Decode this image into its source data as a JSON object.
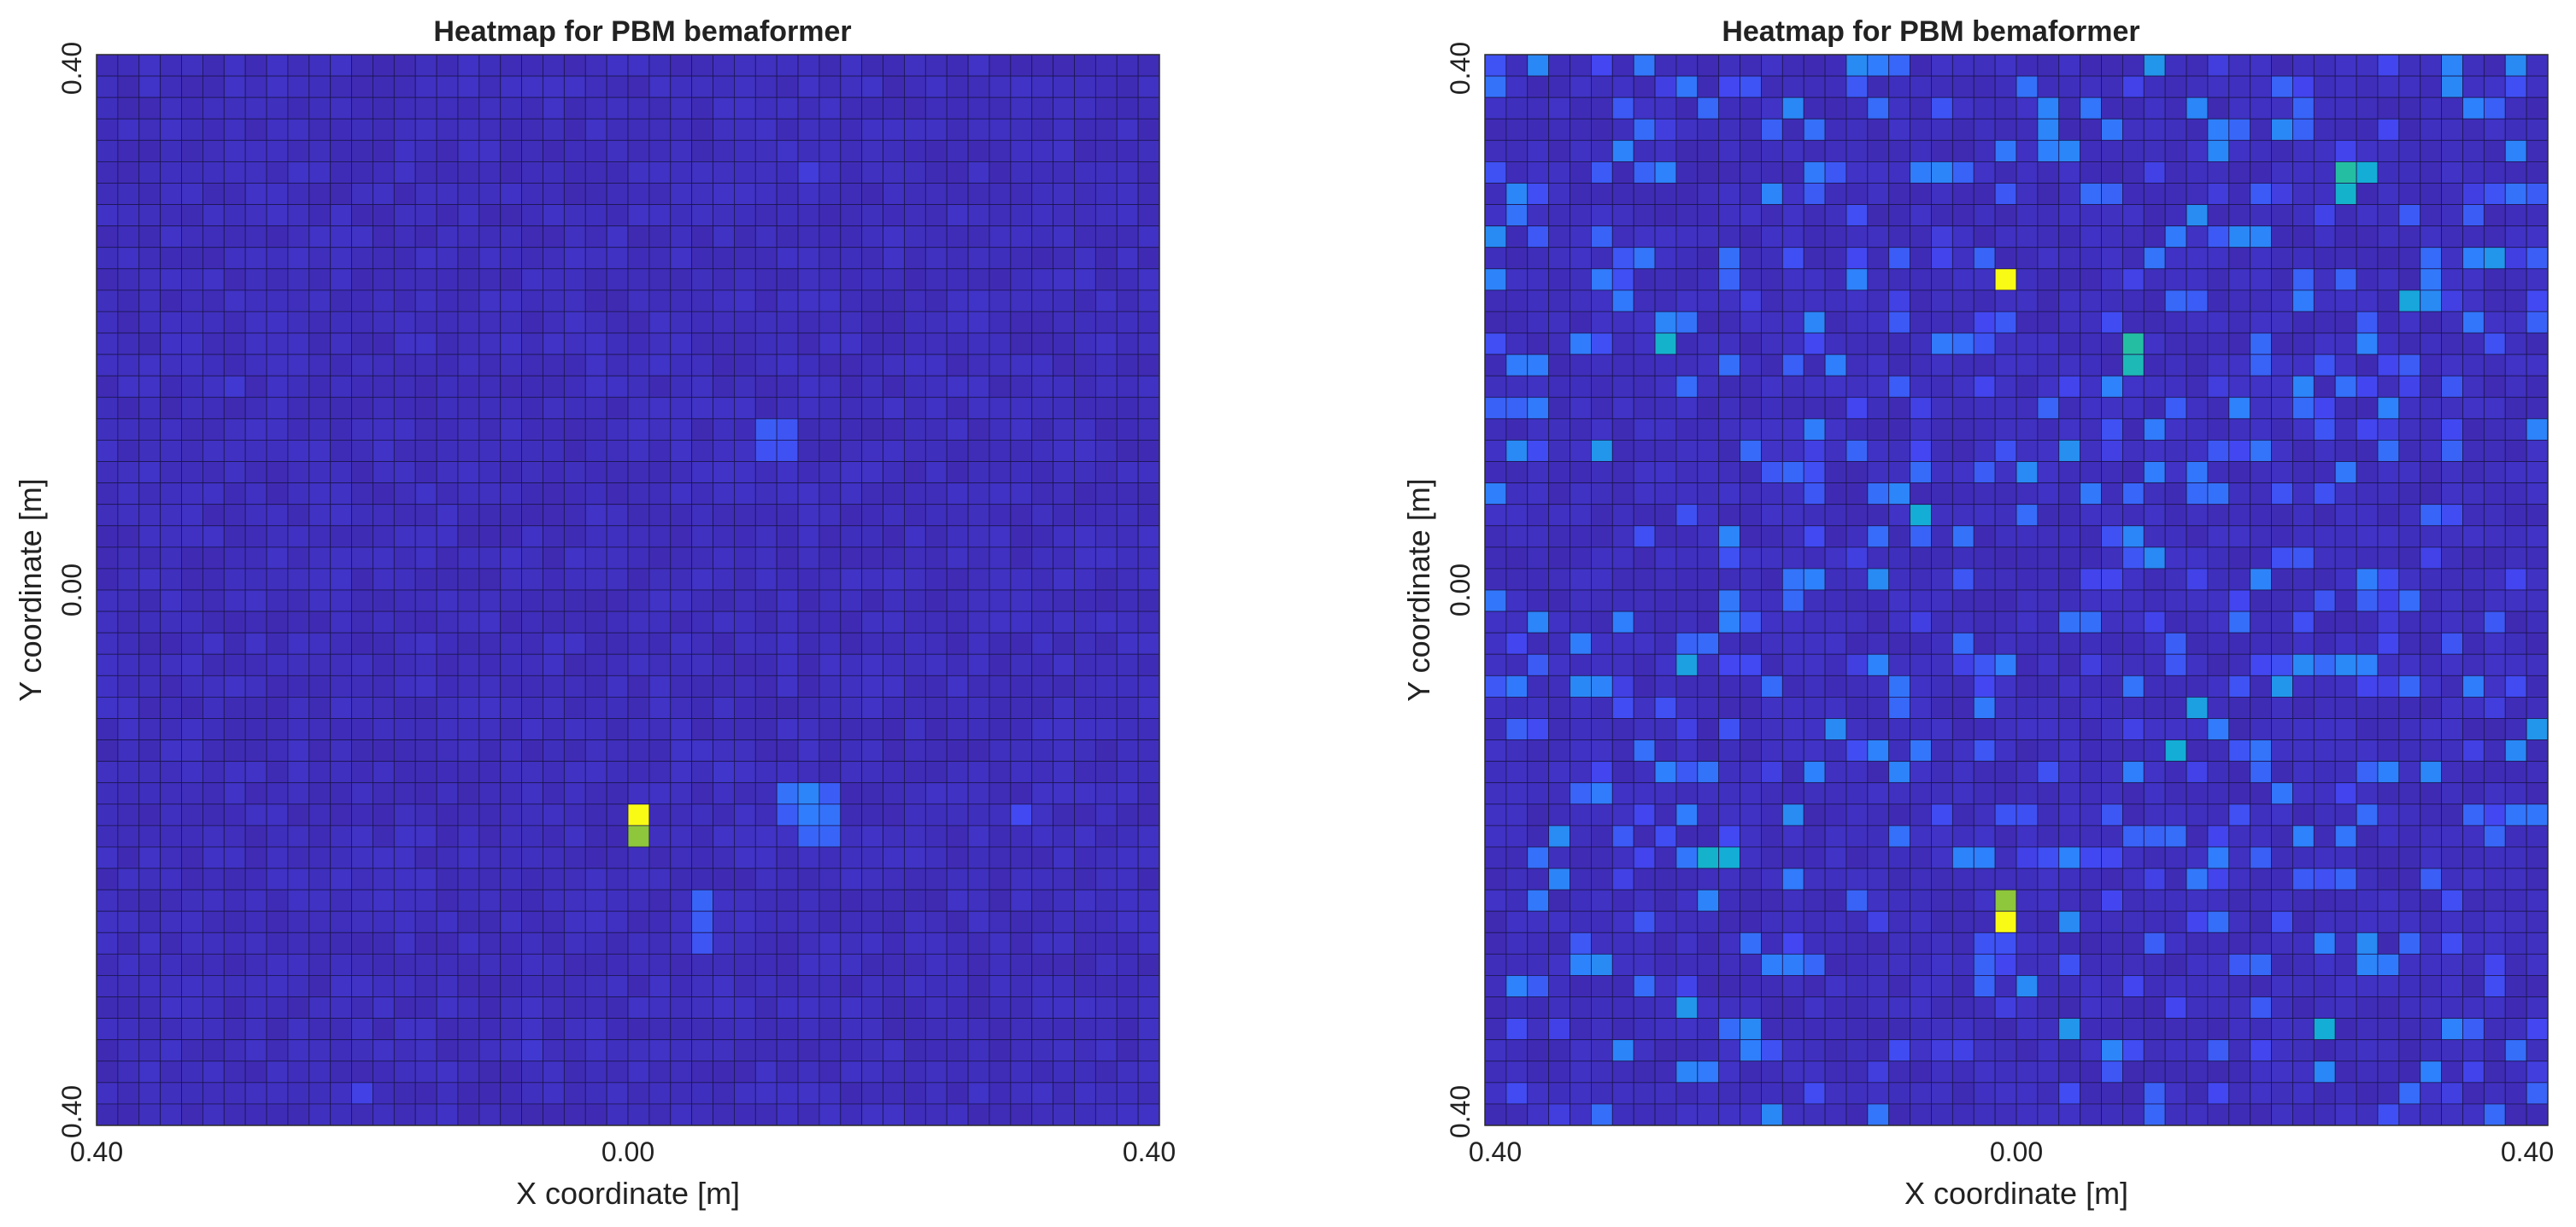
{
  "chart_data": [
    {
      "type": "heatmap",
      "title": "Heatmap for PBM bemaformer",
      "xlabel": "X coordinate [m]",
      "ylabel": "Y coordinate [m]",
      "xticks": [
        "0.40",
        "0.00",
        "0.40"
      ],
      "yticks": [
        "0.40",
        "0.00",
        "0.40"
      ],
      "grid": {
        "cols": 50,
        "rows": 50
      },
      "x_range": [
        -0.4,
        0.4
      ],
      "y_range": [
        -0.4,
        0.4
      ],
      "colormap": [
        "#3e26a8",
        "#4346f1",
        "#2f80fd",
        "#12b0d4",
        "#27c29a",
        "#8bc73d",
        "#dfb92e",
        "#f9fb15"
      ],
      "background_value": 0.02,
      "cells": [
        {
          "c": 25,
          "r": 35,
          "v": 1.0
        },
        {
          "c": 25,
          "r": 36,
          "v": 0.72
        },
        {
          "c": 32,
          "r": 34,
          "v": 0.25
        },
        {
          "c": 33,
          "r": 34,
          "v": 0.3
        },
        {
          "c": 33,
          "r": 35,
          "v": 0.28
        },
        {
          "c": 34,
          "r": 35,
          "v": 0.25
        },
        {
          "c": 33,
          "r": 36,
          "v": 0.22
        },
        {
          "c": 34,
          "r": 36,
          "v": 0.22
        },
        {
          "c": 32,
          "r": 35,
          "v": 0.2
        },
        {
          "c": 34,
          "r": 34,
          "v": 0.2
        },
        {
          "c": 28,
          "r": 39,
          "v": 0.22
        },
        {
          "c": 28,
          "r": 40,
          "v": 0.2
        },
        {
          "c": 28,
          "r": 41,
          "v": 0.18
        },
        {
          "c": 31,
          "r": 17,
          "v": 0.2
        },
        {
          "c": 32,
          "r": 17,
          "v": 0.18
        },
        {
          "c": 31,
          "r": 18,
          "v": 0.17
        },
        {
          "c": 32,
          "r": 18,
          "v": 0.17
        },
        {
          "c": 43,
          "r": 35,
          "v": 0.15
        },
        {
          "c": 33,
          "r": 5,
          "v": 0.1
        },
        {
          "c": 12,
          "r": 48,
          "v": 0.12
        },
        {
          "c": 6,
          "r": 15,
          "v": 0.08
        },
        {
          "c": 20,
          "r": 46,
          "v": 0.08
        },
        {
          "c": 15,
          "r": 20,
          "v": 0.06
        },
        {
          "c": 29,
          "r": 33,
          "v": 0.07
        }
      ]
    },
    {
      "type": "heatmap",
      "title": "Heatmap for PBM bemaformer",
      "xlabel": "X coordinate [m]",
      "ylabel": "Y coordinate [m]",
      "xticks": [
        "0.40",
        "0.00",
        "0.40"
      ],
      "yticks": [
        "0.40",
        "0.00",
        "0.40"
      ],
      "grid": {
        "cols": 50,
        "rows": 50
      },
      "x_range": [
        -0.4,
        0.4
      ],
      "y_range": [
        -0.4,
        0.4
      ],
      "colormap": [
        "#3e26a8",
        "#4346f1",
        "#2f80fd",
        "#12b0d4",
        "#27c29a",
        "#8bc73d",
        "#dfb92e",
        "#f9fb15"
      ],
      "background_value": 0.02,
      "random_fill": {
        "seed": 7,
        "count": 520,
        "min": 0.1,
        "max": 0.32
      },
      "cells": [
        {
          "c": 24,
          "r": 10,
          "v": 1.0
        },
        {
          "c": 24,
          "r": 39,
          "v": 0.72
        },
        {
          "c": 24,
          "r": 40,
          "v": 1.0
        },
        {
          "c": 30,
          "r": 13,
          "v": 0.55
        },
        {
          "c": 30,
          "r": 14,
          "v": 0.5
        },
        {
          "c": 40,
          "r": 5,
          "v": 0.55
        },
        {
          "c": 40,
          "r": 6,
          "v": 0.45
        },
        {
          "c": 41,
          "r": 5,
          "v": 0.42
        },
        {
          "c": 8,
          "r": 13,
          "v": 0.45
        },
        {
          "c": 20,
          "r": 21,
          "v": 0.42
        },
        {
          "c": 10,
          "r": 37,
          "v": 0.45
        },
        {
          "c": 11,
          "r": 37,
          "v": 0.42
        },
        {
          "c": 39,
          "r": 45,
          "v": 0.42
        },
        {
          "c": 32,
          "r": 32,
          "v": 0.42
        },
        {
          "c": 9,
          "r": 28,
          "v": 0.38
        },
        {
          "c": 43,
          "r": 11,
          "v": 0.4
        },
        {
          "c": 37,
          "r": 29,
          "v": 0.35
        },
        {
          "c": 33,
          "r": 30,
          "v": 0.38
        },
        {
          "c": 49,
          "r": 31,
          "v": 0.35
        },
        {
          "c": 47,
          "r": 9,
          "v": 0.35
        },
        {
          "c": 9,
          "r": 44,
          "v": 0.35
        },
        {
          "c": 31,
          "r": 0,
          "v": 0.35
        },
        {
          "c": 45,
          "r": 0,
          "v": 0.3
        },
        {
          "c": 13,
          "r": 6,
          "v": 0.3
        },
        {
          "c": 33,
          "r": 7,
          "v": 0.32
        },
        {
          "c": 36,
          "r": 8,
          "v": 0.3
        },
        {
          "c": 27,
          "r": 18,
          "v": 0.33
        },
        {
          "c": 19,
          "r": 20,
          "v": 0.3
        },
        {
          "c": 5,
          "r": 18,
          "v": 0.35
        },
        {
          "c": 14,
          "r": 35,
          "v": 0.32
        },
        {
          "c": 27,
          "r": 45,
          "v": 0.35
        },
        {
          "c": 41,
          "r": 42,
          "v": 0.3
        },
        {
          "c": 34,
          "r": 37,
          "v": 0.28
        }
      ]
    }
  ]
}
